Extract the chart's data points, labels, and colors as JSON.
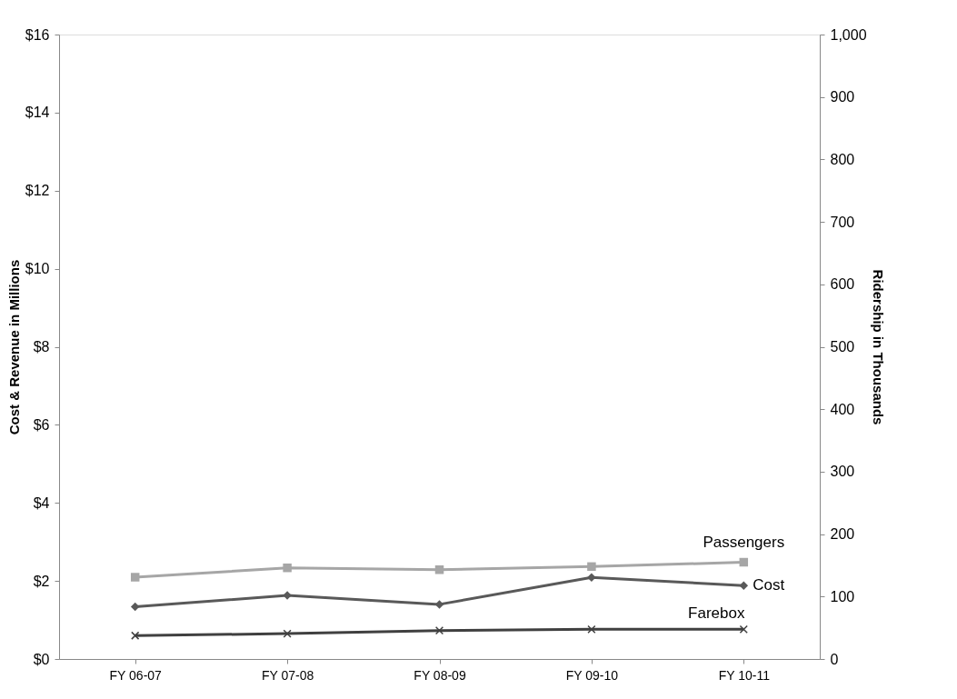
{
  "chart_data": {
    "type": "line",
    "ylabel": "Cost & Revenue in Millions",
    "y2label": "Ridership in Thousands",
    "categories": [
      "FY 06-07",
      "FY 07-08",
      "FY 08-09",
      "FY 09-10",
      "FY 10-11"
    ],
    "series": [
      {
        "name": "Passengers",
        "color": "#a6a6a6",
        "marker": "square",
        "axis": "y2",
        "values": [
          131,
          146,
          143,
          148,
          155
        ]
      },
      {
        "name": "Cost",
        "color": "#595959",
        "marker": "diamond",
        "values": [
          1.34,
          1.63,
          1.4,
          2.09,
          1.88
        ]
      },
      {
        "name": "Farebox",
        "color": "#404040",
        "marker": "cross",
        "values": [
          0.6,
          0.65,
          0.73,
          0.76,
          0.76
        ]
      }
    ],
    "ylim": [
      0,
      16
    ],
    "yticks": [
      {
        "value": 0,
        "label": "$0"
      },
      {
        "value": 2,
        "label": "$2"
      },
      {
        "value": 4,
        "label": "$4"
      },
      {
        "value": 6,
        "label": "$6"
      },
      {
        "value": 8,
        "label": "$8"
      },
      {
        "value": 10,
        "label": "$10"
      },
      {
        "value": 12,
        "label": "$12"
      },
      {
        "value": 14,
        "label": "$14"
      },
      {
        "value": 16,
        "label": "$16"
      }
    ],
    "y2lim": [
      0,
      1000
    ],
    "y2ticks": [
      0,
      100,
      200,
      300,
      400,
      500,
      600,
      700,
      800,
      900,
      {
        "value": 1000,
        "label": "1,000"
      }
    ],
    "grid": false,
    "line_style": "solid"
  }
}
